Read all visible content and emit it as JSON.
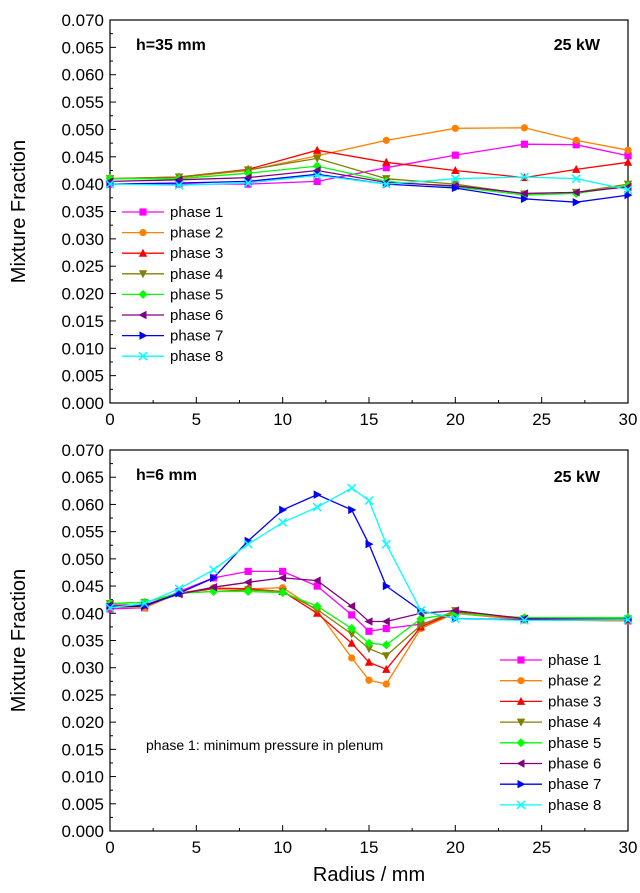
{
  "chart_data": [
    {
      "type": "line",
      "annotations": [
        "h=35 mm",
        "25 kW"
      ],
      "ylabel": "Mixture Fraction",
      "xlabel": "",
      "xlim": [
        0,
        30
      ],
      "ylim": [
        0,
        0.07
      ],
      "xticks": [
        "0",
        "5",
        "10",
        "15",
        "20",
        "25",
        "30"
      ],
      "yticks": [
        "0.000",
        "0.005",
        "0.010",
        "0.015",
        "0.020",
        "0.025",
        "0.030",
        "0.035",
        "0.040",
        "0.045",
        "0.050",
        "0.055",
        "0.060",
        "0.065",
        "0.070"
      ],
      "legend_position": "lower-left",
      "series": [
        {
          "name": "phase 1",
          "color": "#ff00ff",
          "marker": "square",
          "x": [
            0,
            4,
            8,
            12,
            16,
            20,
            24,
            27,
            30
          ],
          "values": [
            0.04,
            0.04,
            0.04,
            0.0405,
            0.043,
            0.0453,
            0.0473,
            0.0472,
            0.0452
          ]
        },
        {
          "name": "phase 2",
          "color": "#ff8000",
          "marker": "circle",
          "x": [
            0,
            4,
            8,
            12,
            16,
            20,
            24,
            27,
            30
          ],
          "values": [
            0.041,
            0.0412,
            0.0425,
            0.0452,
            0.048,
            0.0502,
            0.0503,
            0.048,
            0.0462
          ]
        },
        {
          "name": "phase 3",
          "color": "#ff0000",
          "marker": "triangle-up",
          "x": [
            0,
            4,
            8,
            12,
            16,
            20,
            24,
            27,
            30
          ],
          "values": [
            0.041,
            0.0413,
            0.0427,
            0.0462,
            0.044,
            0.0425,
            0.0412,
            0.0427,
            0.044
          ]
        },
        {
          "name": "phase 4",
          "color": "#808000",
          "marker": "triangle-down",
          "x": [
            0,
            4,
            8,
            12,
            16,
            20,
            24,
            27,
            30
          ],
          "values": [
            0.041,
            0.0413,
            0.0426,
            0.0447,
            0.041,
            0.04,
            0.0382,
            0.0385,
            0.04
          ]
        },
        {
          "name": "phase 5",
          "color": "#00ff00",
          "marker": "diamond",
          "x": [
            0,
            4,
            8,
            12,
            16,
            20,
            24,
            27,
            30
          ],
          "values": [
            0.041,
            0.041,
            0.042,
            0.0433,
            0.0405,
            0.0395,
            0.038,
            0.0383,
            0.0397
          ]
        },
        {
          "name": "phase 6",
          "color": "#800080",
          "marker": "triangle-left",
          "x": [
            0,
            4,
            8,
            12,
            16,
            20,
            24,
            27,
            30
          ],
          "values": [
            0.0405,
            0.0408,
            0.0412,
            0.0425,
            0.0403,
            0.0397,
            0.0383,
            0.0385,
            0.0395
          ]
        },
        {
          "name": "phase 7",
          "color": "#0000ff",
          "marker": "triangle-right",
          "x": [
            0,
            4,
            8,
            12,
            16,
            20,
            24,
            27,
            30
          ],
          "values": [
            0.04,
            0.0402,
            0.0405,
            0.0418,
            0.04,
            0.0393,
            0.0373,
            0.0367,
            0.038
          ]
        },
        {
          "name": "phase 8",
          "color": "#00ffff",
          "marker": "cross",
          "x": [
            0,
            4,
            8,
            12,
            16,
            20,
            24,
            27,
            30
          ],
          "values": [
            0.04,
            0.0398,
            0.0402,
            0.0416,
            0.04,
            0.041,
            0.0413,
            0.041,
            0.039
          ]
        }
      ]
    },
    {
      "type": "line",
      "annotations": [
        "h=6 mm",
        "25 kW",
        "phase 1: minimum pressure in plenum"
      ],
      "ylabel": "Mixture Fraction",
      "xlabel": "Radius / mm",
      "xlim": [
        0,
        30
      ],
      "ylim": [
        0,
        0.07
      ],
      "xticks": [
        "0",
        "5",
        "10",
        "15",
        "20",
        "25",
        "30"
      ],
      "yticks": [
        "0.000",
        "0.005",
        "0.010",
        "0.015",
        "0.020",
        "0.025",
        "0.030",
        "0.035",
        "0.040",
        "0.045",
        "0.050",
        "0.055",
        "0.060",
        "0.065",
        "0.070"
      ],
      "legend_position": "lower-right",
      "series": [
        {
          "name": "phase 1",
          "color": "#ff00ff",
          "marker": "square",
          "x": [
            0,
            2,
            4,
            6,
            8,
            10,
            12,
            14,
            15,
            16,
            18,
            20,
            24,
            30
          ],
          "values": [
            0.0408,
            0.041,
            0.044,
            0.0465,
            0.0477,
            0.0477,
            0.045,
            0.0397,
            0.0367,
            0.0372,
            0.038,
            0.04,
            0.0388,
            0.0386
          ]
        },
        {
          "name": "phase 2",
          "color": "#ff8000",
          "marker": "circle",
          "x": [
            0,
            2,
            4,
            6,
            8,
            10,
            12,
            14,
            15,
            16,
            18,
            20,
            24,
            30
          ],
          "values": [
            0.0412,
            0.041,
            0.0437,
            0.0447,
            0.0445,
            0.0447,
            0.0405,
            0.0318,
            0.0277,
            0.027,
            0.0372,
            0.04,
            0.0388,
            0.0386
          ]
        },
        {
          "name": "phase 3",
          "color": "#ff0000",
          "marker": "triangle-up",
          "x": [
            0,
            2,
            4,
            6,
            8,
            10,
            12,
            14,
            15,
            16,
            18,
            20,
            24,
            30
          ],
          "values": [
            0.0415,
            0.0415,
            0.0437,
            0.0445,
            0.0445,
            0.044,
            0.04,
            0.0345,
            0.031,
            0.0297,
            0.0375,
            0.0402,
            0.039,
            0.0388
          ]
        },
        {
          "name": "phase 4",
          "color": "#808000",
          "marker": "triangle-down",
          "x": [
            0,
            2,
            4,
            6,
            8,
            10,
            12,
            14,
            15,
            16,
            18,
            20,
            24,
            30
          ],
          "values": [
            0.0418,
            0.042,
            0.0437,
            0.044,
            0.0443,
            0.044,
            0.0407,
            0.0362,
            0.0335,
            0.0322,
            0.0378,
            0.0405,
            0.039,
            0.039
          ]
        },
        {
          "name": "phase 5",
          "color": "#00ff00",
          "marker": "diamond",
          "x": [
            0,
            2,
            4,
            6,
            8,
            10,
            12,
            14,
            15,
            16,
            18,
            20,
            24,
            30
          ],
          "values": [
            0.0418,
            0.042,
            0.0437,
            0.044,
            0.044,
            0.0438,
            0.0413,
            0.0372,
            0.0345,
            0.0342,
            0.039,
            0.04,
            0.0392,
            0.0392
          ]
        },
        {
          "name": "phase 6",
          "color": "#800080",
          "marker": "triangle-left",
          "x": [
            0,
            2,
            4,
            6,
            8,
            10,
            12,
            14,
            15,
            16,
            18,
            20,
            24,
            30
          ],
          "values": [
            0.0415,
            0.0415,
            0.0435,
            0.0448,
            0.0457,
            0.0465,
            0.046,
            0.0413,
            0.0385,
            0.0385,
            0.04,
            0.0405,
            0.039,
            0.0388
          ]
        },
        {
          "name": "phase 7",
          "color": "#0000ff",
          "marker": "triangle-right",
          "x": [
            0,
            2,
            4,
            6,
            8,
            10,
            12,
            14,
            15,
            16,
            18,
            20,
            24,
            30
          ],
          "values": [
            0.0412,
            0.0413,
            0.0437,
            0.0465,
            0.0533,
            0.059,
            0.0618,
            0.059,
            0.0527,
            0.045,
            0.0405,
            0.039,
            0.0388,
            0.0388
          ]
        },
        {
          "name": "phase 8",
          "color": "#00ffff",
          "marker": "cross",
          "x": [
            0,
            2,
            4,
            6,
            8,
            10,
            12,
            14,
            15,
            16,
            18,
            20,
            24,
            30
          ],
          "values": [
            0.041,
            0.0418,
            0.0445,
            0.048,
            0.0527,
            0.0567,
            0.0595,
            0.063,
            0.0607,
            0.0527,
            0.0405,
            0.039,
            0.0387,
            0.0388
          ]
        }
      ]
    }
  ]
}
